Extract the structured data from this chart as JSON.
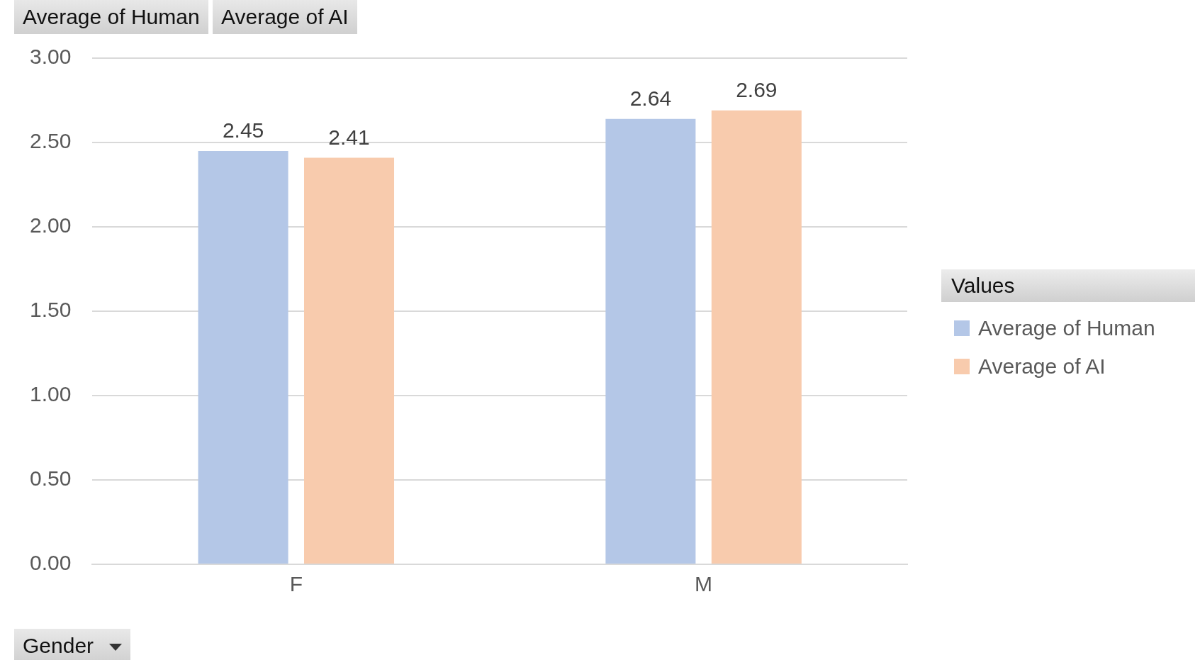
{
  "chart_data": {
    "type": "bar",
    "categories": [
      "F",
      "M"
    ],
    "series": [
      {
        "name": "Average of Human",
        "color": "#b4c7e7",
        "values": [
          2.45,
          2.64
        ]
      },
      {
        "name": "Average of AI",
        "color": "#f8cbad",
        "values": [
          2.41,
          2.69
        ]
      }
    ],
    "ylim": [
      0,
      3
    ],
    "yticks": [
      {
        "value": 0,
        "label": "0.00"
      },
      {
        "value": 0.5,
        "label": "0.50"
      },
      {
        "value": 1,
        "label": "1.00"
      },
      {
        "value": 1.5,
        "label": "1.50"
      },
      {
        "value": 2,
        "label": "2.00"
      },
      {
        "value": 2.5,
        "label": "2.50"
      },
      {
        "value": 3,
        "label": "3.00"
      }
    ],
    "grid": "y",
    "legend": "right",
    "legend_title": "Values",
    "xlabel": "Gender",
    "data_labels": true
  }
}
